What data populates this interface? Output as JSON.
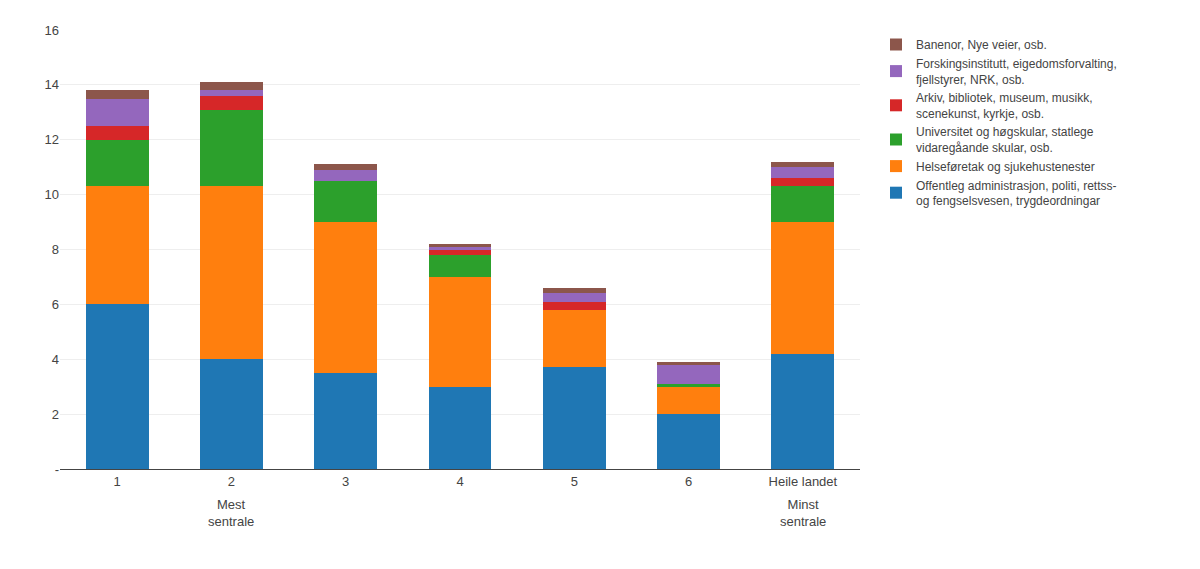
{
  "chart_data": {
    "type": "bar",
    "stacked": true,
    "categories": [
      "1",
      "2",
      "3",
      "4",
      "5",
      "6",
      "Heile landet"
    ],
    "annotations": [
      {
        "x": "1",
        "text": "Mest\nsentrale"
      },
      {
        "x": "6",
        "text": "Minst\nsentrale"
      }
    ],
    "series": [
      {
        "name": "Offentleg administrasjon, politi, rettss-\nog fengselsvesen, trygdeordningar",
        "values": [
          6.0,
          4.0,
          3.5,
          3.0,
          3.7,
          2.0,
          4.2
        ]
      },
      {
        "name": "Helseføretak og sjukehustenester",
        "values": [
          4.3,
          6.3,
          5.5,
          4.0,
          2.1,
          1.0,
          4.8
        ]
      },
      {
        "name": "Universitet og høgskular, statlege\nvidaregåande skular, osb.",
        "values": [
          1.7,
          2.8,
          1.5,
          0.8,
          0.0,
          0.1,
          1.3
        ]
      },
      {
        "name": "Arkiv, bibliotek, museum, musikk,\nscenekunst, kyrkje, osb.",
        "values": [
          0.5,
          0.5,
          0.0,
          0.2,
          0.3,
          0.0,
          0.3
        ]
      },
      {
        "name": "Forskingsinstitutt, eigedomsforvalting,\nfjellstyrer, NRK, osb.",
        "values": [
          1.0,
          0.2,
          0.4,
          0.1,
          0.3,
          0.7,
          0.4
        ]
      },
      {
        "name": "Banenor, Nye veier, osb.",
        "values": [
          0.3,
          0.3,
          0.2,
          0.1,
          0.2,
          0.1,
          0.2
        ]
      }
    ],
    "ylim": [
      0,
      16
    ],
    "yticks": [
      {
        "value": 0,
        "label": "-"
      },
      2,
      4,
      6,
      8,
      10,
      12,
      14,
      16
    ],
    "grid": true,
    "legend": "right"
  }
}
